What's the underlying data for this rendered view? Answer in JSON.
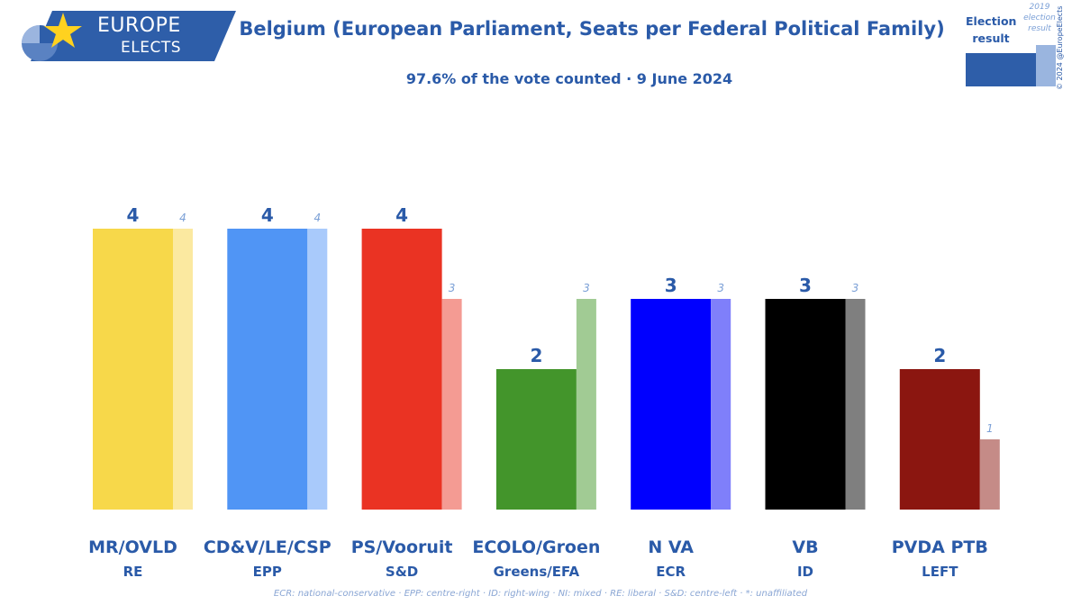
{
  "logo": {
    "word1": "EUROPE",
    "word2": "ELECTS"
  },
  "title": "Belgium (European Parliament, Seats per Federal Political Family)",
  "subtitle": "97.6% of the vote counted · 9 June 2024",
  "legend": {
    "current_label": "Election result",
    "previous_label": "2019 election result"
  },
  "copyright": "© 2024 @EuropeElects",
  "footnote": "ECR: national-conservative · EPP: centre-right · ID: right-wing · NI: mixed · RE: liberal · S&D: centre-left · *: unaffiliated",
  "chart_data": {
    "type": "bar",
    "categories": [
      "MR/OVLD",
      "CD&V/LE/CSP",
      "PS/Vooruit",
      "ECOLO/Groen",
      "N VA",
      "VB",
      "PVDA PTB"
    ],
    "groups": [
      "RE",
      "EPP",
      "S&D",
      "Greens/EFA",
      "ECR",
      "ID",
      "LEFT"
    ],
    "series": [
      {
        "name": "Election result",
        "values": [
          4,
          4,
          4,
          2,
          3,
          3,
          2
        ]
      },
      {
        "name": "2019 election result",
        "values": [
          4,
          4,
          3,
          3,
          3,
          3,
          1
        ]
      }
    ],
    "colors": [
      "#f7d84a",
      "#5095f5",
      "#ea3323",
      "#43952b",
      "#0000ff",
      "#000000",
      "#8b1610"
    ],
    "colors_previous": [
      "#fbe9a0",
      "#a9cafb",
      "#f49b93",
      "#a1cb94",
      "#7f7ffa",
      "#7f7f7f",
      "#c58b87"
    ],
    "ylim": [
      0,
      4
    ]
  }
}
